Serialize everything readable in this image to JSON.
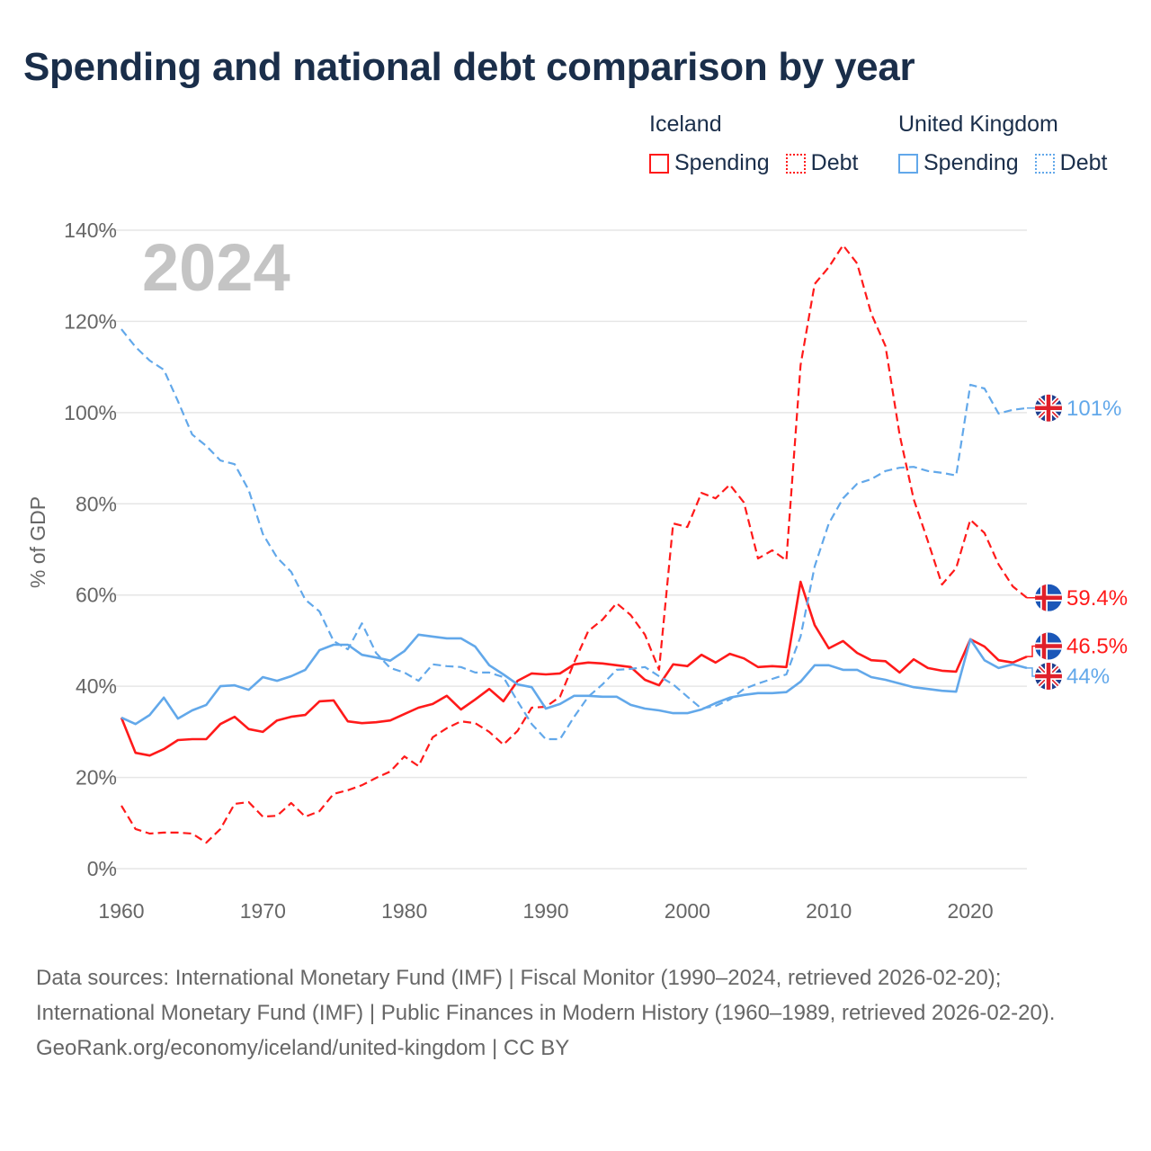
{
  "colors": {
    "iceland": "#ff1a1a",
    "uk": "#62a8ea",
    "title": "#1a2e4a",
    "grid": "#e6e6e6",
    "year_watermark": "#c4c4c4"
  },
  "chart_data": {
    "type": "line",
    "title": "Spending and national debt comparison by year",
    "xlabel": "",
    "ylabel": "% of GDP",
    "year_label": "2024",
    "xlim": [
      1960,
      2024
    ],
    "ylim": [
      0,
      140
    ],
    "x_ticks": [
      1960,
      1970,
      1980,
      1990,
      2000,
      2010,
      2020
    ],
    "y_ticks": [
      "0%",
      "20%",
      "40%",
      "60%",
      "80%",
      "100%",
      "120%",
      "140%"
    ],
    "y_tick_values": [
      0,
      20,
      40,
      60,
      80,
      100,
      120,
      140
    ],
    "grid": true,
    "legend_placement": "top-right",
    "legend": {
      "groups": [
        {
          "name": "Iceland",
          "items": [
            "Spending",
            "Debt"
          ]
        },
        {
          "name": "United Kingdom",
          "items": [
            "Spending",
            "Debt"
          ]
        }
      ]
    },
    "x_start": 1960,
    "series": [
      {
        "name": "Iceland Spending",
        "country": "iceland",
        "dashed": false,
        "end_label": "46.5%",
        "values": [
          33.1,
          25.4,
          24.8,
          26.2,
          28.2,
          28.4,
          28.4,
          31.7,
          33.3,
          30.6,
          30.0,
          32.5,
          33.3,
          33.7,
          36.7,
          36.9,
          32.3,
          31.9,
          32.1,
          32.5,
          33.9,
          35.3,
          36.1,
          37.9,
          34.9,
          37.1,
          39.4,
          36.7,
          41.2,
          42.8,
          42.6,
          42.8,
          44.8,
          45.2,
          45.0,
          44.6,
          44.2,
          41.4,
          40.2,
          44.8,
          44.4,
          46.9,
          45.2,
          47.1,
          46.1,
          44.2,
          44.4,
          44.2,
          62.9,
          53.4,
          48.3,
          49.9,
          47.3,
          45.7,
          45.5,
          43.0,
          45.9,
          44.0,
          43.4,
          43.2,
          50.3,
          48.7,
          45.7,
          45.2,
          46.5
        ]
      },
      {
        "name": "Iceland Debt",
        "country": "iceland",
        "dashed": true,
        "end_label": "59.4%",
        "values": [
          13.8,
          8.7,
          7.7,
          7.9,
          7.9,
          7.7,
          5.7,
          8.7,
          14.2,
          14.6,
          11.4,
          11.6,
          14.4,
          11.4,
          12.6,
          16.4,
          17.2,
          18.3,
          19.9,
          21.3,
          24.6,
          22.5,
          28.8,
          30.8,
          32.3,
          31.9,
          30.0,
          27.2,
          30.2,
          35.3,
          35.5,
          37.7,
          45.2,
          52.1,
          54.6,
          58.2,
          55.6,
          51.3,
          43.6,
          75.7,
          74.9,
          82.4,
          81.2,
          84.2,
          80.3,
          68.0,
          69.8,
          67.6,
          110.4,
          128.2,
          131.9,
          136.7,
          132.7,
          121.7,
          114.6,
          95.2,
          81.0,
          71.8,
          62.3,
          65.9,
          76.5,
          73.6,
          66.7,
          61.9,
          59.4
        ]
      },
      {
        "name": "United Kingdom Spending",
        "country": "uk",
        "dashed": false,
        "end_label": "44%",
        "values": [
          33.1,
          31.7,
          33.7,
          37.5,
          32.9,
          34.7,
          35.9,
          40.0,
          40.2,
          39.2,
          42.0,
          41.2,
          42.2,
          43.6,
          47.9,
          49.1,
          49.1,
          46.9,
          46.3,
          45.6,
          47.7,
          51.3,
          50.9,
          50.5,
          50.5,
          48.7,
          44.6,
          42.6,
          40.4,
          39.8,
          35.1,
          36.1,
          37.9,
          37.9,
          37.7,
          37.7,
          35.9,
          35.1,
          34.7,
          34.1,
          34.1,
          34.9,
          36.3,
          37.5,
          38.1,
          38.5,
          38.5,
          38.7,
          41.0,
          44.6,
          44.6,
          43.6,
          43.6,
          42.0,
          41.4,
          40.6,
          39.8,
          39.4,
          39.0,
          38.8,
          50.3,
          45.7,
          44.0,
          44.8,
          44.0
        ]
      },
      {
        "name": "United Kingdom Debt",
        "country": "uk",
        "dashed": true,
        "end_label": "101%",
        "values": [
          118.3,
          114.4,
          111.4,
          109.4,
          102.5,
          95.2,
          92.7,
          89.5,
          88.7,
          83.0,
          73.4,
          68.2,
          65.1,
          59.0,
          56.4,
          49.9,
          48.1,
          53.8,
          47.3,
          44.0,
          43.0,
          41.2,
          44.8,
          44.4,
          44.2,
          43.0,
          43.0,
          42.0,
          36.7,
          31.7,
          28.4,
          28.4,
          33.3,
          37.7,
          40.4,
          43.6,
          43.8,
          44.2,
          42.2,
          40.4,
          37.7,
          35.1,
          35.7,
          37.1,
          39.4,
          40.6,
          41.6,
          42.6,
          50.9,
          66.3,
          75.7,
          81.2,
          84.4,
          85.4,
          87.2,
          87.9,
          88.1,
          87.2,
          86.8,
          86.2,
          106.1,
          105.3,
          99.8,
          100.6,
          101.0
        ]
      }
    ]
  },
  "footer": {
    "sources": "Data sources: International Monetary Fund (IMF) | Fiscal Monitor (1990–2024, retrieved 2026-02-20); International Monetary Fund (IMF) | Public Finances in Modern History (1960–1989, retrieved 2026-02-20).",
    "credit": "GeoRank.org/economy/iceland/united-kingdom | CC BY"
  }
}
